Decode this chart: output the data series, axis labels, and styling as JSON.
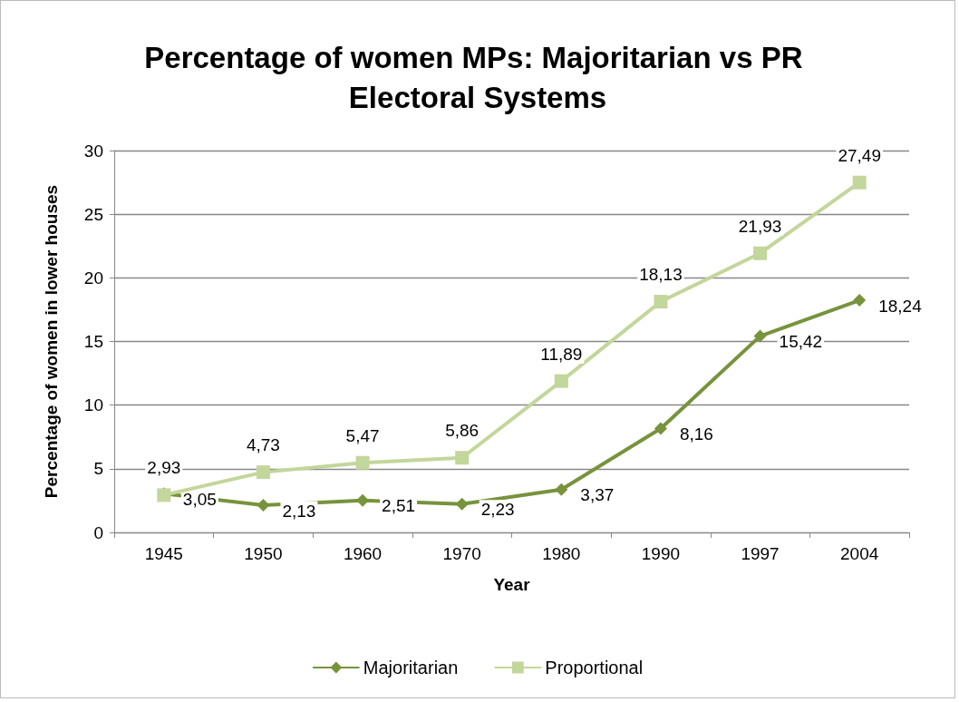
{
  "chart_data": {
    "type": "line",
    "title": "Percentage of women MPs: Majoritarian vs PR Electoral Systems",
    "xlabel": "Year",
    "ylabel": "Percentage of women in lower houses",
    "categories": [
      "1945",
      "1950",
      "1960",
      "1970",
      "1980",
      "1990",
      "1997",
      "2004"
    ],
    "series": [
      {
        "name": "Majoritarian",
        "color": "#77933c",
        "marker": "diamond",
        "values": [
          3.05,
          2.13,
          2.51,
          2.23,
          3.37,
          8.16,
          15.42,
          18.24
        ],
        "value_labels": [
          "3,05",
          "2,13",
          "2,51",
          "2,23",
          "3,37",
          "8,16",
          "15,42",
          "18,24"
        ]
      },
      {
        "name": "Proportional",
        "color": "#c3d69b",
        "marker": "square",
        "values": [
          2.93,
          4.73,
          5.47,
          5.86,
          11.89,
          18.13,
          21.93,
          27.49
        ],
        "value_labels": [
          "2,93",
          "4,73",
          "5,47",
          "5,86",
          "11,89",
          "18,13",
          "21,93",
          "27,49"
        ]
      }
    ],
    "ylim": [
      0,
      30
    ],
    "yticks": [
      0,
      5,
      10,
      15,
      20,
      25,
      30
    ],
    "grid": "y",
    "legend": "bottom",
    "line_style": "solid"
  }
}
